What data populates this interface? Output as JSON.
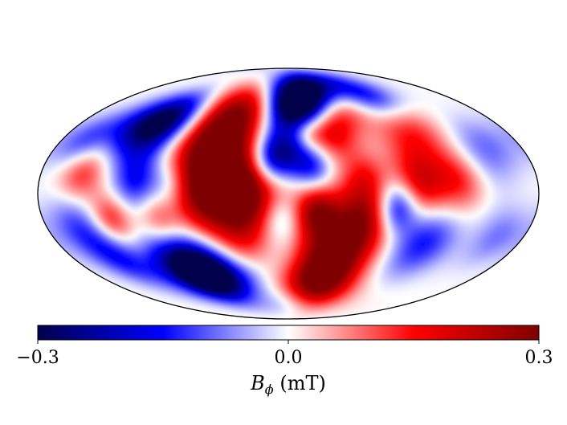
{
  "chart_data": {
    "type": "heatmap",
    "projection": "Mollweide",
    "colormap": "seismic",
    "colormap_stops": [
      "#00004c",
      "#0000ff",
      "#ffffff",
      "#ff0000",
      "#7f0000"
    ],
    "colorbar": {
      "label": "B_ϕ (mT)",
      "label_symbol": "B",
      "label_subscript": "ϕ",
      "label_units": " (mT)",
      "vmin": -0.3,
      "vmax": 0.3,
      "tick_labels": [
        "−0.3",
        "0.0",
        "0.3"
      ],
      "tick_values": [
        -0.3,
        0.0,
        0.3
      ],
      "orientation": "horizontal",
      "placement": "bottom"
    },
    "blobs": [
      {
        "lon": 0,
        "lat": 0,
        "value": 0.04,
        "size": 15
      },
      {
        "lon": -50,
        "lat": 10,
        "value": 0.28,
        "size": 20
      },
      {
        "lon": -62,
        "lat": 30,
        "value": 0.2,
        "size": 18
      },
      {
        "lon": -42,
        "lat": 52,
        "value": 0.2,
        "size": 15
      },
      {
        "lon": -30,
        "lat": 0,
        "value": 0.22,
        "size": 14
      },
      {
        "lon": -35,
        "lat": -25,
        "value": 0.12,
        "size": 14
      },
      {
        "lon": -62,
        "lat": -5,
        "value": 0.12,
        "size": 14
      },
      {
        "lon": -18,
        "lat": 38,
        "value": -0.05,
        "size": 9
      },
      {
        "lon": -15,
        "lat": 20,
        "value": -0.18,
        "size": 10
      },
      {
        "lon": 0,
        "lat": 25,
        "value": -0.2,
        "size": 11
      },
      {
        "lon": -5,
        "lat": 50,
        "value": -0.1,
        "size": 10
      },
      {
        "lon": -5,
        "lat": -15,
        "value": -0.1,
        "size": 10
      },
      {
        "lon": 5,
        "lat": -45,
        "value": -0.1,
        "size": 14
      },
      {
        "lon": 10,
        "lat": 60,
        "value": -0.25,
        "size": 12
      },
      {
        "lon": 30,
        "lat": 65,
        "value": -0.3,
        "size": 12
      },
      {
        "lon": 48,
        "lat": 55,
        "value": 0.2,
        "size": 12
      },
      {
        "lon": 35,
        "lat": 35,
        "value": 0.15,
        "size": 11
      },
      {
        "lon": 18,
        "lat": 15,
        "value": -0.15,
        "size": 10
      },
      {
        "lon": 8,
        "lat": 50,
        "value": -0.12,
        "size": 10
      },
      {
        "lon": 40,
        "lat": -30,
        "value": 0.3,
        "size": 20
      },
      {
        "lon": 25,
        "lat": -55,
        "value": 0.32,
        "size": 15
      },
      {
        "lon": 60,
        "lat": -12,
        "value": 0.15,
        "size": 14
      },
      {
        "lon": 55,
        "lat": 10,
        "value": 0.1,
        "size": 11
      },
      {
        "lon": 78,
        "lat": -8,
        "value": -0.25,
        "size": 11
      },
      {
        "lon": 95,
        "lat": 5,
        "value": 0.2,
        "size": 14
      },
      {
        "lon": 100,
        "lat": 40,
        "value": 0.15,
        "size": 16
      },
      {
        "lon": 90,
        "lat": 60,
        "value": -0.2,
        "size": 12
      },
      {
        "lon": 125,
        "lat": 8,
        "value": 0.15,
        "size": 13
      },
      {
        "lon": 140,
        "lat": 20,
        "value": -0.08,
        "size": 15
      },
      {
        "lon": 105,
        "lat": -28,
        "value": -0.15,
        "size": 15
      },
      {
        "lon": 70,
        "lat": -45,
        "value": -0.05,
        "size": 14
      },
      {
        "lon": -90,
        "lat": -45,
        "value": -0.3,
        "size": 14
      },
      {
        "lon": -70,
        "lat": -50,
        "value": -0.3,
        "size": 12
      },
      {
        "lon": -120,
        "lat": 40,
        "value": -0.25,
        "size": 14
      },
      {
        "lon": -100,
        "lat": 45,
        "value": -0.18,
        "size": 12
      },
      {
        "lon": -150,
        "lat": 12,
        "value": 0.15,
        "size": 12
      },
      {
        "lon": -130,
        "lat": -15,
        "value": 0.15,
        "size": 10
      },
      {
        "lon": -110,
        "lat": 8,
        "value": -0.15,
        "size": 12
      },
      {
        "lon": -85,
        "lat": 5,
        "value": -0.08,
        "size": 10
      },
      {
        "lon": -95,
        "lat": -15,
        "value": 0.1,
        "size": 10
      },
      {
        "lon": -155,
        "lat": -20,
        "value": -0.12,
        "size": 14
      },
      {
        "lon": -140,
        "lat": -40,
        "value": -0.12,
        "size": 12
      },
      {
        "lon": -160,
        "lat": 30,
        "value": -0.12,
        "size": 12
      },
      {
        "lon": 160,
        "lat": -25,
        "value": -0.08,
        "size": 12
      },
      {
        "lon": 160,
        "lat": 30,
        "value": -0.05,
        "size": 12
      },
      {
        "lon": 0,
        "lat": -70,
        "value": -0.12,
        "size": 10
      },
      {
        "lon": -40,
        "lat": -50,
        "value": -0.05,
        "size": 10
      },
      {
        "lon": 15,
        "lat": 35,
        "value": 0.1,
        "size": 8
      },
      {
        "lon": 20,
        "lat": -10,
        "value": 0.18,
        "size": 10
      }
    ]
  }
}
